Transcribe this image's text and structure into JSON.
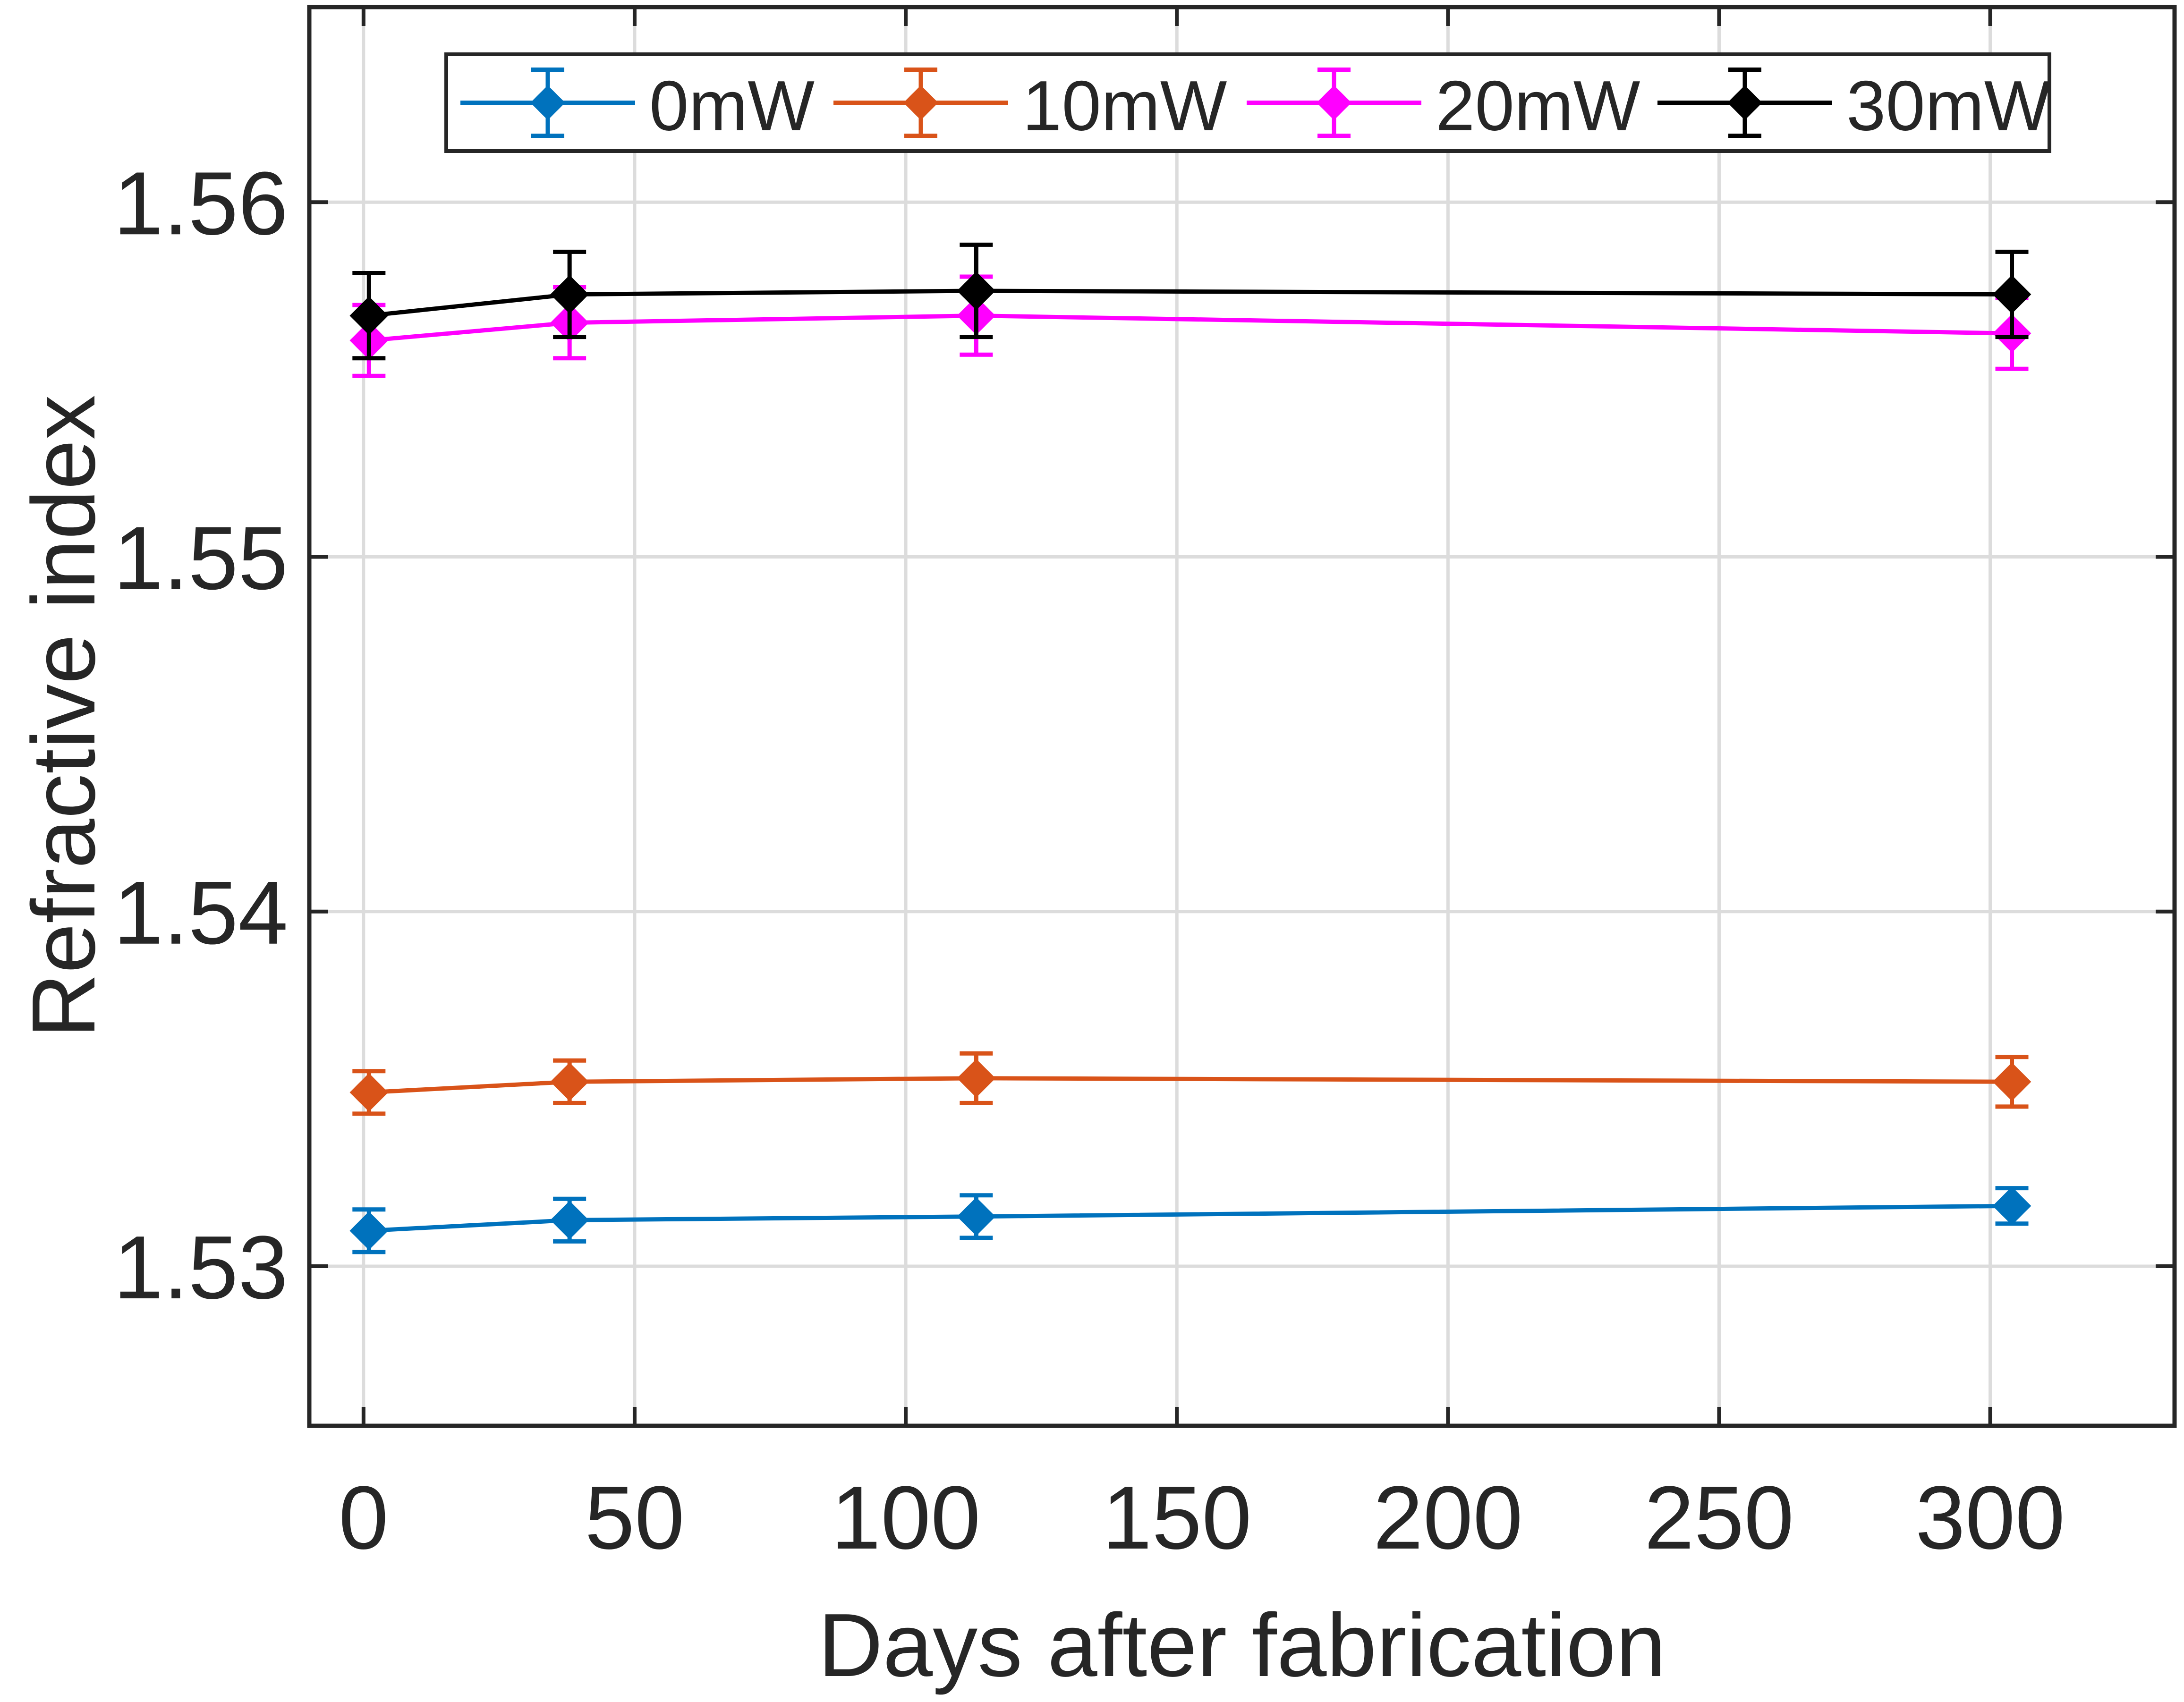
{
  "chart_data": {
    "type": "line",
    "title": "",
    "xlabel": "Days after fabrication",
    "ylabel": "Refractive index",
    "xlim": [
      -10,
      334
    ],
    "ylim": [
      1.5255,
      1.5655
    ],
    "xticks": [
      0,
      50,
      100,
      150,
      200,
      250,
      300
    ],
    "xtick_labels": [
      "0",
      "50",
      "100",
      "150",
      "200",
      "250",
      "300"
    ],
    "yticks": [
      1.53,
      1.54,
      1.55,
      1.56
    ],
    "ytick_labels": [
      "1.53",
      "1.54",
      "1.55",
      "1.56"
    ],
    "grid": true,
    "legend_position": "top",
    "x": [
      1,
      38,
      113,
      304
    ],
    "series": [
      {
        "name": "0mW",
        "color": "#0072BD",
        "values": [
          1.531,
          1.5313,
          1.5314,
          1.5317
        ],
        "errors": [
          0.0006,
          0.0006,
          0.0006,
          0.0005
        ]
      },
      {
        "name": "10mW",
        "color": "#D95319",
        "values": [
          1.5349,
          1.5352,
          1.5353,
          1.5352
        ],
        "errors": [
          0.0006,
          0.0006,
          0.0007,
          0.0007
        ]
      },
      {
        "name": "20mW",
        "color": "#FF00FF",
        "values": [
          1.5561,
          1.5566,
          1.5568,
          1.5563
        ],
        "errors": [
          0.001,
          0.001,
          0.0011,
          0.001
        ]
      },
      {
        "name": "30mW",
        "color": "#000000",
        "values": [
          1.5568,
          1.5574,
          1.5575,
          1.5574
        ],
        "errors": [
          0.0012,
          0.0012,
          0.0013,
          0.0012
        ]
      }
    ]
  }
}
